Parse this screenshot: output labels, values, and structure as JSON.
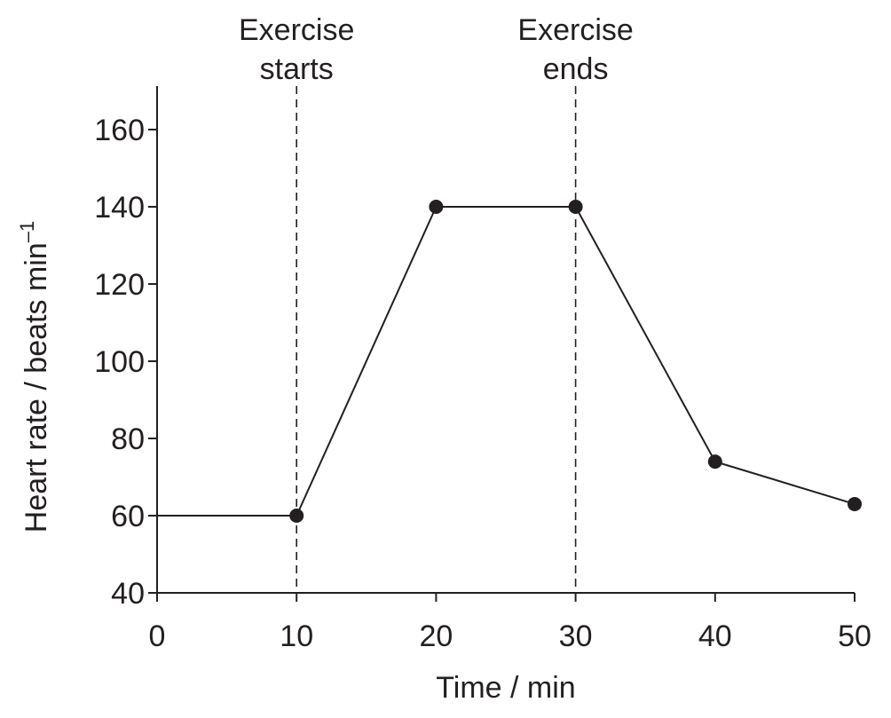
{
  "chart_data": {
    "type": "line",
    "title": "",
    "xlabel": "Time / min",
    "ylabel": "Heart rate / beats min",
    "ylabel_superscript": "–1",
    "xlim": [
      0,
      50
    ],
    "ylim": [
      40,
      170
    ],
    "x_ticks": [
      0,
      10,
      20,
      30,
      40,
      50
    ],
    "y_ticks": [
      40,
      60,
      80,
      100,
      120,
      140,
      160
    ],
    "grid": false,
    "series": [
      {
        "x": [
          0,
          10,
          20,
          30,
          40,
          50
        ],
        "y": [
          60,
          60,
          140,
          140,
          74,
          63
        ],
        "markers_at": [
          10,
          20,
          30,
          40,
          50
        ]
      }
    ],
    "annotations": [
      {
        "x": 10,
        "line1": "Exercise",
        "line2": "starts",
        "style": "dashed-vertical"
      },
      {
        "x": 30,
        "line1": "Exercise",
        "line2": "ends",
        "style": "dashed-vertical"
      }
    ],
    "colors": {
      "ink": "#231f20"
    }
  }
}
